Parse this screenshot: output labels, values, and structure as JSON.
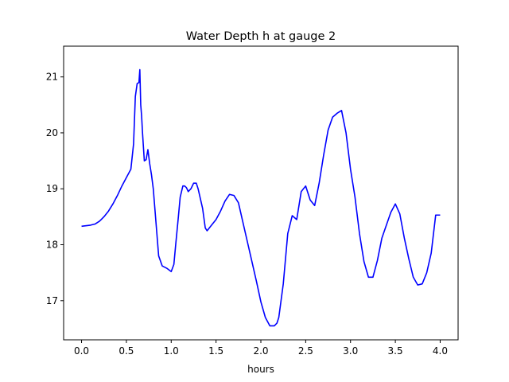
{
  "chart_data": {
    "type": "line",
    "title": "Water Depth h at gauge 2",
    "xlabel": "hours",
    "ylabel": "",
    "xlim": [
      -0.2,
      4.2
    ],
    "ylim": [
      16.3,
      21.55
    ],
    "xticks": [
      "0.0",
      "0.5",
      "1.0",
      "1.5",
      "2.0",
      "2.5",
      "3.0",
      "3.5",
      "4.0"
    ],
    "yticks": [
      "17",
      "18",
      "19",
      "20",
      "21"
    ],
    "grid": false,
    "series": [
      {
        "color": "#0000ff",
        "x": [
          0.0,
          0.1,
          0.15,
          0.2,
          0.25,
          0.3,
          0.35,
          0.4,
          0.45,
          0.5,
          0.55,
          0.58,
          0.6,
          0.62,
          0.64,
          0.65,
          0.66,
          0.67,
          0.68,
          0.7,
          0.72,
          0.74,
          0.76,
          0.78,
          0.8,
          0.83,
          0.86,
          0.9,
          0.95,
          1.0,
          1.03,
          1.05,
          1.08,
          1.1,
          1.13,
          1.15,
          1.17,
          1.19,
          1.22,
          1.25,
          1.28,
          1.3,
          1.35,
          1.38,
          1.4,
          1.45,
          1.5,
          1.55,
          1.6,
          1.65,
          1.7,
          1.75,
          1.8,
          1.85,
          1.9,
          1.95,
          2.0,
          2.05,
          2.1,
          2.15,
          2.18,
          2.2,
          2.25,
          2.3,
          2.35,
          2.4,
          2.45,
          2.5,
          2.55,
          2.6,
          2.65,
          2.7,
          2.75,
          2.8,
          2.85,
          2.9,
          2.95,
          3.0,
          3.05,
          3.1,
          3.15,
          3.2,
          3.25,
          3.3,
          3.35,
          3.4,
          3.45,
          3.5,
          3.55,
          3.6,
          3.65,
          3.7,
          3.75,
          3.8,
          3.85,
          3.9,
          3.95,
          4.0
        ],
        "y": [
          18.33,
          18.35,
          18.37,
          18.42,
          18.5,
          18.6,
          18.73,
          18.88,
          19.05,
          19.2,
          19.35,
          19.8,
          20.65,
          20.88,
          20.9,
          21.13,
          20.5,
          20.3,
          20.0,
          19.5,
          19.52,
          19.7,
          19.45,
          19.25,
          19.0,
          18.4,
          17.8,
          17.62,
          17.58,
          17.52,
          17.65,
          18.0,
          18.5,
          18.85,
          19.05,
          19.05,
          19.02,
          18.95,
          19.0,
          19.1,
          19.1,
          19.0,
          18.65,
          18.3,
          18.25,
          18.35,
          18.45,
          18.6,
          18.78,
          18.9,
          18.88,
          18.75,
          18.4,
          18.05,
          17.7,
          17.35,
          16.98,
          16.7,
          16.55,
          16.55,
          16.6,
          16.7,
          17.3,
          18.2,
          18.52,
          18.45,
          18.95,
          19.05,
          18.8,
          18.7,
          19.1,
          19.6,
          20.05,
          20.28,
          20.35,
          20.4,
          20.0,
          19.35,
          18.85,
          18.2,
          17.7,
          17.42,
          17.42,
          17.72,
          18.12,
          18.35,
          18.58,
          18.73,
          18.55,
          18.12,
          17.75,
          17.42,
          17.28,
          17.3,
          17.5,
          17.85,
          18.53,
          18.53
        ]
      }
    ]
  }
}
